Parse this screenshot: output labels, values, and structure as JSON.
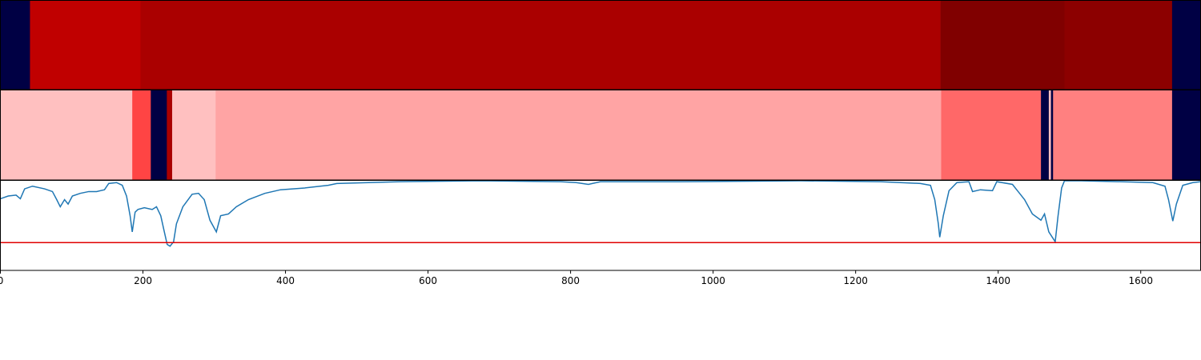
{
  "chart_data": [
    {
      "type": "band",
      "xlim": [
        0,
        1684
      ],
      "segments": [
        {
          "start": 0,
          "end": 41.5,
          "color": "#000044"
        },
        {
          "start": 41.5,
          "end": 196.5,
          "color": "#c00000"
        },
        {
          "start": 196.5,
          "end": 1319,
          "color": "#aa0000"
        },
        {
          "start": 1319,
          "end": 1493,
          "color": "#800000"
        },
        {
          "start": 1493,
          "end": 1644,
          "color": "#8c0000"
        },
        {
          "start": 1644,
          "end": 1684,
          "color": "#000044"
        }
      ]
    },
    {
      "type": "band",
      "xlim": [
        0,
        1684
      ],
      "segments": [
        {
          "start": 0,
          "end": 185,
          "color": "#ffc0c0"
        },
        {
          "start": 185,
          "end": 211,
          "color": "#ff4444"
        },
        {
          "start": 211,
          "end": 233.5,
          "color": "#000044"
        },
        {
          "start": 233.5,
          "end": 241,
          "color": "#aa0000"
        },
        {
          "start": 241,
          "end": 302,
          "color": "#ffc0c0"
        },
        {
          "start": 302,
          "end": 1320,
          "color": "#ffa4a4"
        },
        {
          "start": 1320,
          "end": 1460,
          "color": "#ff6868"
        },
        {
          "start": 1460,
          "end": 1471,
          "color": "#000044"
        },
        {
          "start": 1471,
          "end": 1474,
          "color": "#ffc0c0"
        },
        {
          "start": 1474,
          "end": 1477,
          "color": "#000044"
        },
        {
          "start": 1477,
          "end": 1644,
          "color": "#ff8080"
        },
        {
          "start": 1644,
          "end": 1684,
          "color": "#000044"
        }
      ]
    },
    {
      "type": "line",
      "xlim": [
        0,
        1684
      ],
      "ylim": [
        0,
        1
      ],
      "xticks": [
        0,
        200,
        400,
        600,
        800,
        1000,
        1200,
        1400,
        1600
      ],
      "x": [
        0,
        11,
        22,
        28,
        34,
        45,
        62,
        73,
        79,
        84,
        90,
        95,
        101,
        112,
        124,
        135,
        146,
        152,
        163,
        171,
        177,
        182,
        185,
        189,
        193,
        202,
        213,
        219,
        225,
        230,
        234,
        238,
        243,
        247,
        256,
        269,
        278,
        286,
        294,
        303,
        309,
        320,
        331,
        348,
        371,
        393,
        427,
        460,
        472,
        561,
        674,
        786,
        808,
        825,
        842,
        954,
        1123,
        1235,
        1291,
        1305,
        1311,
        1316,
        1318,
        1323,
        1331,
        1342,
        1359,
        1364,
        1375,
        1392,
        1398,
        1420,
        1428,
        1437,
        1448,
        1460,
        1465,
        1471,
        1480,
        1484,
        1489,
        1493,
        1516,
        1572,
        1617,
        1634,
        1639,
        1645,
        1650,
        1659,
        1673,
        1684
      ],
      "series": [
        {
          "color": "#1f77b4",
          "values": [
            0.8,
            0.83,
            0.84,
            0.8,
            0.91,
            0.94,
            0.91,
            0.88,
            0.79,
            0.71,
            0.79,
            0.74,
            0.83,
            0.86,
            0.88,
            0.88,
            0.9,
            0.97,
            0.98,
            0.95,
            0.83,
            0.61,
            0.43,
            0.65,
            0.68,
            0.7,
            0.68,
            0.71,
            0.61,
            0.43,
            0.29,
            0.27,
            0.32,
            0.52,
            0.71,
            0.85,
            0.86,
            0.79,
            0.56,
            0.43,
            0.61,
            0.63,
            0.71,
            0.79,
            0.86,
            0.9,
            0.92,
            0.95,
            0.97,
            0.99,
            1.0,
            0.99,
            0.98,
            0.96,
            0.99,
            0.99,
            1.0,
            0.99,
            0.97,
            0.95,
            0.79,
            0.52,
            0.37,
            0.61,
            0.89,
            0.98,
            0.99,
            0.88,
            0.9,
            0.89,
            0.99,
            0.96,
            0.88,
            0.79,
            0.63,
            0.56,
            0.63,
            0.43,
            0.32,
            0.61,
            0.92,
            1.0,
            1.0,
            0.99,
            0.98,
            0.94,
            0.79,
            0.55,
            0.74,
            0.95,
            0.98,
            0.99
          ]
        }
      ],
      "threshold": 0.31,
      "threshold_color": "#e00000"
    }
  ]
}
